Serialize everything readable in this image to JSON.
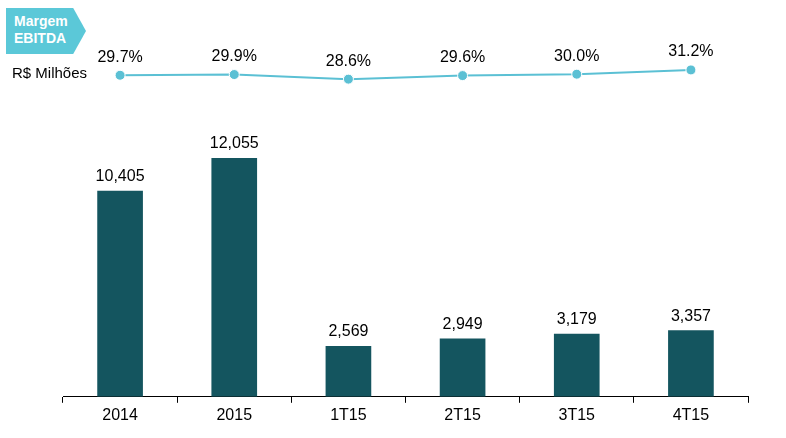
{
  "chart_data": {
    "type": "bar",
    "subtitle": "R$ Milhões",
    "categories": [
      "2014",
      "2015",
      "1T15",
      "2T15",
      "3T15",
      "4T15"
    ],
    "values": [
      10405,
      12055,
      2569,
      2949,
      3179,
      3357
    ],
    "value_labels": [
      "10,405",
      "12,055",
      "2,569",
      "2,949",
      "3,179",
      "3,357"
    ],
    "color": "#14555f",
    "ylim": [
      0,
      17000
    ],
    "y2lim": [
      -61,
      34
    ],
    "grid": false,
    "data_labels": true,
    "tick_labels": "x",
    "series": [
      {
        "name": "Margem EBITDA",
        "type": "line",
        "axis": "y2",
        "color": "#5bc0d4",
        "marker": "circle",
        "values": [
          29.7,
          29.9,
          28.6,
          29.6,
          30.0,
          31.2
        ],
        "value_labels": [
          "29.7%",
          "29.9%",
          "28.6%",
          "29.6%",
          "30.0%",
          "31.2%"
        ]
      }
    ]
  }
}
